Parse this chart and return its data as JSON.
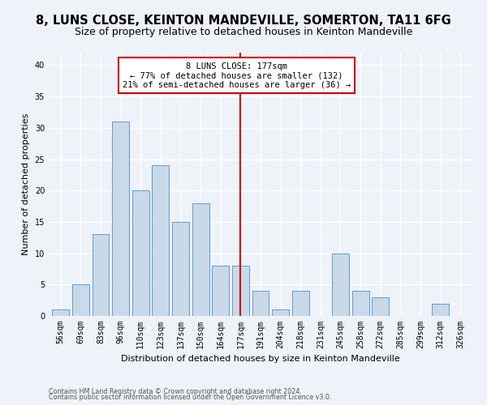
{
  "title": "8, LUNS CLOSE, KEINTON MANDEVILLE, SOMERTON, TA11 6FG",
  "subtitle": "Size of property relative to detached houses in Keinton Mandeville",
  "xlabel": "Distribution of detached houses by size in Keinton Mandeville",
  "ylabel": "Number of detached properties",
  "categories": [
    "56sqm",
    "69sqm",
    "83sqm",
    "96sqm",
    "110sqm",
    "123sqm",
    "137sqm",
    "150sqm",
    "164sqm",
    "177sqm",
    "191sqm",
    "204sqm",
    "218sqm",
    "231sqm",
    "245sqm",
    "258sqm",
    "272sqm",
    "285sqm",
    "299sqm",
    "312sqm",
    "326sqm"
  ],
  "values": [
    1,
    5,
    13,
    31,
    20,
    24,
    15,
    18,
    8,
    8,
    4,
    1,
    4,
    0,
    10,
    4,
    3,
    0,
    0,
    2,
    0
  ],
  "bar_color": "#c9d9e8",
  "bar_edge_color": "#5b9bd5",
  "marker_index": 9,
  "marker_color": "#cc0000",
  "annotation_text": "8 LUNS CLOSE: 177sqm\n← 77% of detached houses are smaller (132)\n21% of semi-detached houses are larger (36) →",
  "annotation_box_color": "#ffffff",
  "annotation_box_edge_color": "#cc0000",
  "ylim": [
    0,
    42
  ],
  "yticks": [
    0,
    5,
    10,
    15,
    20,
    25,
    30,
    35,
    40
  ],
  "background_color": "#eef2f9",
  "grid_color": "#ffffff",
  "footer1": "Contains HM Land Registry data © Crown copyright and database right 2024.",
  "footer2": "Contains public sector information licensed under the Open Government Licence v3.0.",
  "title_fontsize": 10.5,
  "subtitle_fontsize": 9,
  "axis_label_fontsize": 8,
  "tick_fontsize": 7,
  "annotation_fontsize": 7.5
}
